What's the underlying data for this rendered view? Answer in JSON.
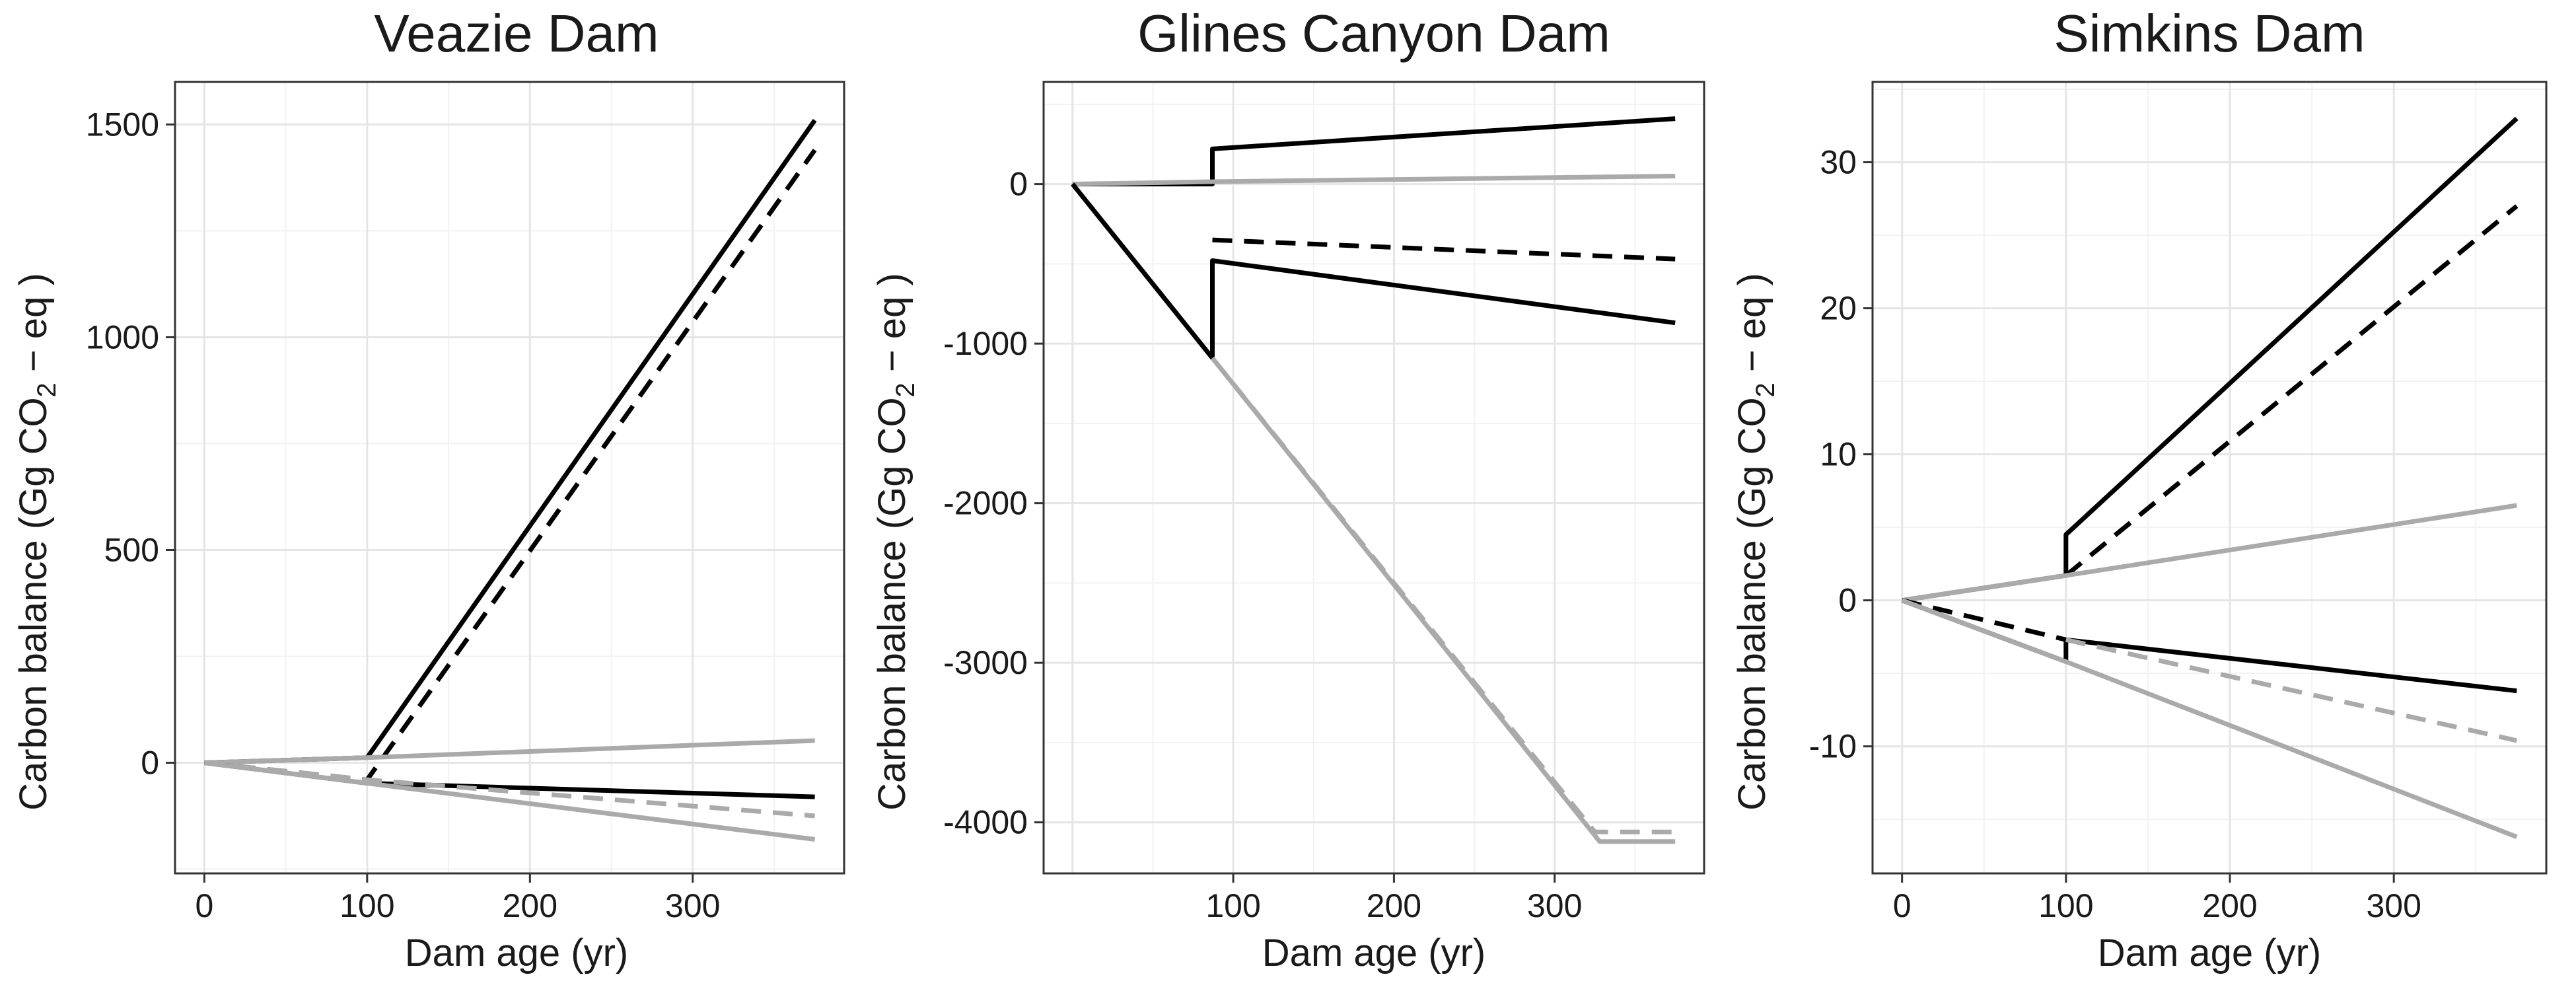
{
  "chart_data": [
    {
      "type": "line",
      "title": "Veazie Dam",
      "xlabel": "Dam age (yr)",
      "ylabel": "Carbon balance (Gg CO",
      "ylabel_sub": "2",
      "ylabel_end": " − eq )",
      "xlim": [
        -18,
        393
      ],
      "ylim": [
        -260,
        1600
      ],
      "xticks": [
        0,
        100,
        200,
        300
      ],
      "yticks": [
        0,
        500,
        1000,
        1500
      ],
      "series": [
        {
          "color": "#000000",
          "dash": false,
          "x": [
            0,
            100,
            375
          ],
          "y": [
            0,
            12,
            1510
          ]
        },
        {
          "color": "#000000",
          "dash": true,
          "x": [
            0,
            100,
            375
          ],
          "y": [
            0,
            -40,
            1440
          ]
        },
        {
          "color": "#aaaaaa",
          "dash": false,
          "x": [
            0,
            100,
            375
          ],
          "y": [
            0,
            12,
            52
          ]
        },
        {
          "color": "#000000",
          "dash": false,
          "x": [
            0,
            100,
            375
          ],
          "y": [
            0,
            -48,
            -80
          ]
        },
        {
          "color": "#aaaaaa",
          "dash": true,
          "x": [
            0,
            100,
            375
          ],
          "y": [
            0,
            -40,
            -125
          ]
        },
        {
          "color": "#aaaaaa",
          "dash": false,
          "x": [
            0,
            100,
            375
          ],
          "y": [
            0,
            -48,
            -180
          ]
        }
      ]
    },
    {
      "type": "line",
      "title": "Glines Canyon Dam",
      "xlabel": "Dam age (yr)",
      "ylabel": "Carbon balance (Gg CO",
      "ylabel_sub": "2",
      "ylabel_end": " − eq )",
      "xlim": [
        -18,
        393
      ],
      "ylim": [
        -4320,
        640
      ],
      "xticks": [
        100,
        200,
        300
      ],
      "yticks": [
        -4000,
        -3000,
        -2000,
        -1000,
        0
      ],
      "series": [
        {
          "color": "#000000",
          "dash": false,
          "x": [
            0,
            87,
            87,
            375
          ],
          "y": [
            0,
            0,
            220,
            410
          ]
        },
        {
          "color": "#aaaaaa",
          "dash": false,
          "x": [
            0,
            87,
            375
          ],
          "y": [
            0,
            15,
            50
          ]
        },
        {
          "color": "#000000",
          "dash": true,
          "x": [
            87,
            375
          ],
          "y": [
            -350,
            -470
          ]
        },
        {
          "color": "#000000",
          "dash": false,
          "x": [
            0,
            87,
            87,
            375
          ],
          "y": [
            0,
            -1090,
            -480,
            -870
          ]
        },
        {
          "color": "#000000",
          "dash": false,
          "x": [
            87,
            87
          ],
          "y": [
            -1090,
            -560
          ]
        },
        {
          "color": "#aaaaaa",
          "dash": true,
          "x": [
            87,
            325,
            375
          ],
          "y": [
            -1090,
            -4060,
            -4060
          ]
        },
        {
          "color": "#aaaaaa",
          "dash": false,
          "x": [
            87,
            328,
            375
          ],
          "y": [
            -1090,
            -4120,
            -4120
          ]
        }
      ]
    },
    {
      "type": "line",
      "title": "Simkins Dam",
      "xlabel": "Dam age (yr)",
      "ylabel": "Carbon balance (Gg CO",
      "ylabel_sub": "2",
      "ylabel_end": " − eq )",
      "xlim": [
        -18,
        393
      ],
      "ylim": [
        -18.7,
        35.5
      ],
      "xticks": [
        0,
        100,
        200,
        300
      ],
      "yticks": [
        -10,
        0,
        10,
        20,
        30
      ],
      "series": [
        {
          "color": "#000000",
          "dash": false,
          "x": [
            0,
            100,
            100,
            375
          ],
          "y": [
            0,
            1.7,
            4.5,
            33
          ]
        },
        {
          "color": "#000000",
          "dash": true,
          "x": [
            100,
            375
          ],
          "y": [
            1.7,
            27
          ]
        },
        {
          "color": "#aaaaaa",
          "dash": false,
          "x": [
            0,
            100,
            375
          ],
          "y": [
            0,
            1.7,
            6.5
          ]
        },
        {
          "color": "#000000",
          "dash": false,
          "x": [
            0,
            100,
            100,
            375
          ],
          "y": [
            0,
            -4.2,
            -2.7,
            -6.2
          ]
        },
        {
          "color": "#000000",
          "dash": true,
          "x": [
            0,
            100
          ],
          "y": [
            0,
            -2.7
          ]
        },
        {
          "color": "#aaaaaa",
          "dash": true,
          "x": [
            100,
            375
          ],
          "y": [
            -2.7,
            -9.6
          ]
        },
        {
          "color": "#aaaaaa",
          "dash": false,
          "x": [
            0,
            100,
            375
          ],
          "y": [
            0,
            -4.2,
            -16.2
          ]
        }
      ]
    }
  ]
}
